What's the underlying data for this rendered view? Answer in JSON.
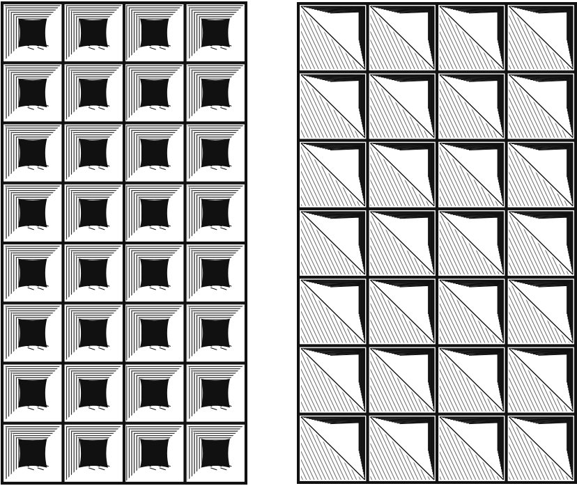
{
  "figure": {
    "panels": [
      {
        "id": "left",
        "style": "hollow-pyramid-studs",
        "rows": 8,
        "cols": 4
      },
      {
        "id": "right",
        "style": "pyramid-studs",
        "rows": 7,
        "cols": 4
      }
    ],
    "colors": {
      "ink": "#111111",
      "paper": "#ffffff"
    }
  }
}
